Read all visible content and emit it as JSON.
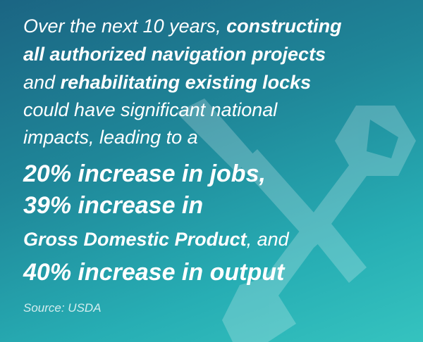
{
  "statement": {
    "segments": [
      "Over the next 10 years,",
      "constructing",
      "all authorized navigation projects",
      "and",
      "rehabilitating existing locks",
      "could have significant national",
      "impacts, leading to a",
      "20% increase in jobs,",
      "39% increase in",
      "Gross Domestic Product",
      ", and",
      "40% increase in output"
    ],
    "source": "Source: USDA"
  }
}
